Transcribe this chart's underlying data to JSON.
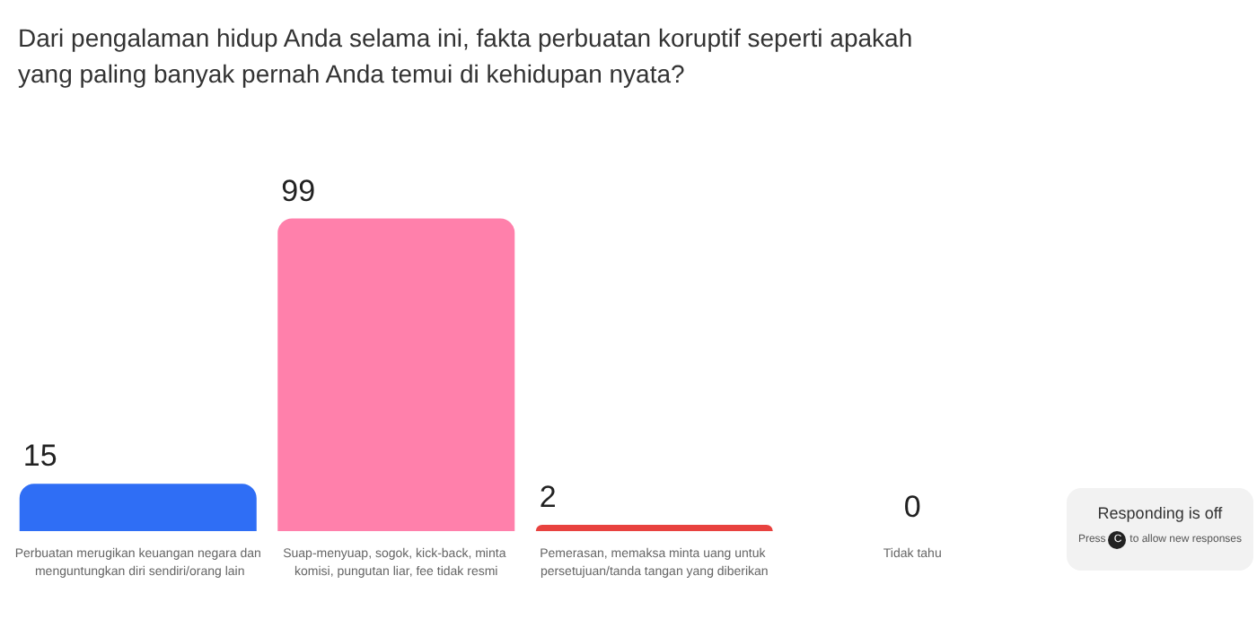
{
  "chart_data": {
    "type": "bar",
    "title": "Dari pengalaman hidup Anda selama ini, fakta perbuatan koruptif seperti apakah yang paling banyak pernah Anda temui di kehidupan nyata?",
    "categories": [
      "Perbuatan merugikan keuangan negara dan menguntungkan diri sendiri/orang lain",
      "Suap-menyuap, sogok, kick-back, minta komisi, pungutan liar, fee tidak resmi",
      "Pemerasan, memaksa minta uang untuk persetujuan/tanda tangan yang diberikan",
      "Tidak tahu"
    ],
    "values": [
      15,
      99,
      2,
      0
    ],
    "colors": [
      "#2f6ef5",
      "#ff80ab",
      "#e8423f",
      "#f5c542"
    ],
    "data_labels": true,
    "annotations": [
      "Responding is off",
      "Press",
      "C",
      "to allow new responses"
    ]
  }
}
